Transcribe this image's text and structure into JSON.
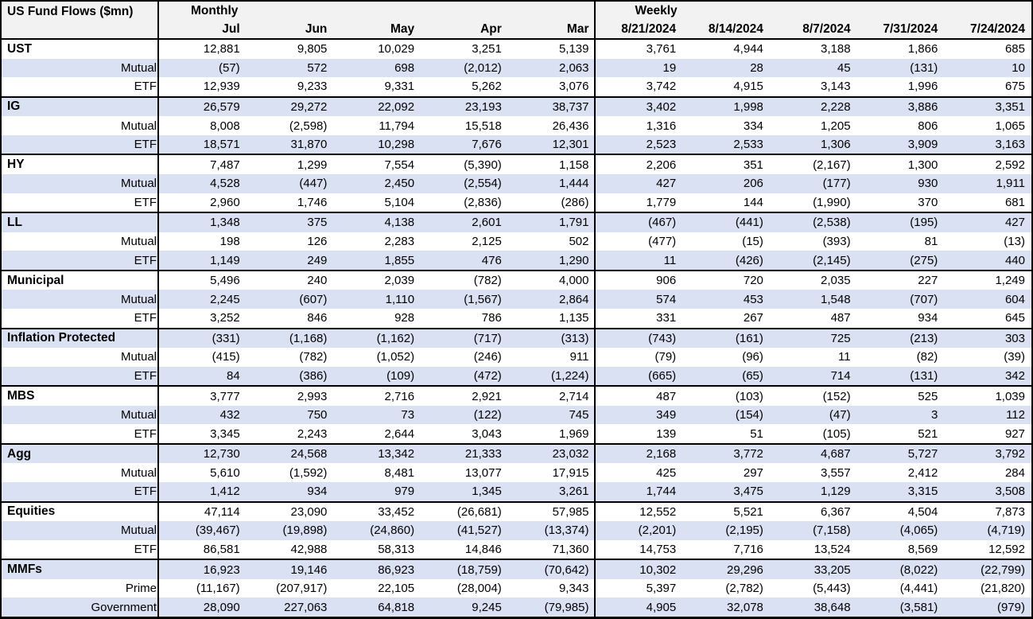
{
  "title": "US Fund Flows ($mn)",
  "colors": {
    "row_alt": "#d9e1f2",
    "header_bg": "#f2f2f2",
    "border": "#000000",
    "text": "#000000"
  },
  "chart_data": {
    "type": "table",
    "title": "US Fund Flows ($mn)",
    "units": "$mn",
    "column_groups": [
      {
        "label": "Monthly",
        "columns": [
          "Jul",
          "Jun",
          "May",
          "Apr",
          "Mar"
        ]
      },
      {
        "label": "Weekly",
        "columns": [
          "8/21/2024",
          "8/14/2024",
          "8/7/2024",
          "7/31/2024",
          "7/24/2024"
        ]
      }
    ],
    "groups": [
      {
        "name": "UST",
        "rows": [
          {
            "label": "UST",
            "bold": true,
            "monthly": [
              "12,881",
              "9,805",
              "10,029",
              "3,251",
              "5,139"
            ],
            "weekly": [
              "3,761",
              "4,944",
              "3,188",
              "1,866",
              "685"
            ]
          },
          {
            "label": "Mutual",
            "monthly": [
              "(57)",
              "572",
              "698",
              "(2,012)",
              "2,063"
            ],
            "weekly": [
              "19",
              "28",
              "45",
              "(131)",
              "10"
            ]
          },
          {
            "label": "ETF",
            "monthly": [
              "12,939",
              "9,233",
              "9,331",
              "5,262",
              "3,076"
            ],
            "weekly": [
              "3,742",
              "4,915",
              "3,143",
              "1,996",
              "675"
            ]
          }
        ]
      },
      {
        "name": "IG",
        "rows": [
          {
            "label": "IG",
            "bold": true,
            "monthly": [
              "26,579",
              "29,272",
              "22,092",
              "23,193",
              "38,737"
            ],
            "weekly": [
              "3,402",
              "1,998",
              "2,228",
              "3,886",
              "3,351"
            ]
          },
          {
            "label": "Mutual",
            "monthly": [
              "8,008",
              "(2,598)",
              "11,794",
              "15,518",
              "26,436"
            ],
            "weekly": [
              "1,316",
              "334",
              "1,205",
              "806",
              "1,065"
            ]
          },
          {
            "label": "ETF",
            "monthly": [
              "18,571",
              "31,870",
              "10,298",
              "7,676",
              "12,301"
            ],
            "weekly": [
              "2,523",
              "2,533",
              "1,306",
              "3,909",
              "3,163"
            ]
          }
        ]
      },
      {
        "name": "HY",
        "rows": [
          {
            "label": "HY",
            "bold": true,
            "monthly": [
              "7,487",
              "1,299",
              "7,554",
              "(5,390)",
              "1,158"
            ],
            "weekly": [
              "2,206",
              "351",
              "(2,167)",
              "1,300",
              "2,592"
            ]
          },
          {
            "label": "Mutual",
            "monthly": [
              "4,528",
              "(447)",
              "2,450",
              "(2,554)",
              "1,444"
            ],
            "weekly": [
              "427",
              "206",
              "(177)",
              "930",
              "1,911"
            ]
          },
          {
            "label": "ETF",
            "monthly": [
              "2,960",
              "1,746",
              "5,104",
              "(2,836)",
              "(286)"
            ],
            "weekly": [
              "1,779",
              "144",
              "(1,990)",
              "370",
              "681"
            ]
          }
        ]
      },
      {
        "name": "LL",
        "rows": [
          {
            "label": "LL",
            "bold": true,
            "monthly": [
              "1,348",
              "375",
              "4,138",
              "2,601",
              "1,791"
            ],
            "weekly": [
              "(467)",
              "(441)",
              "(2,538)",
              "(195)",
              "427"
            ]
          },
          {
            "label": "Mutual",
            "monthly": [
              "198",
              "126",
              "2,283",
              "2,125",
              "502"
            ],
            "weekly": [
              "(477)",
              "(15)",
              "(393)",
              "81",
              "(13)"
            ]
          },
          {
            "label": "ETF",
            "monthly": [
              "1,149",
              "249",
              "1,855",
              "476",
              "1,290"
            ],
            "weekly": [
              "11",
              "(426)",
              "(2,145)",
              "(275)",
              "440"
            ]
          }
        ]
      },
      {
        "name": "Municipal",
        "rows": [
          {
            "label": "Municipal",
            "bold": true,
            "monthly": [
              "5,496",
              "240",
              "2,039",
              "(782)",
              "4,000"
            ],
            "weekly": [
              "906",
              "720",
              "2,035",
              "227",
              "1,249"
            ]
          },
          {
            "label": "Mutual",
            "monthly": [
              "2,245",
              "(607)",
              "1,110",
              "(1,567)",
              "2,864"
            ],
            "weekly": [
              "574",
              "453",
              "1,548",
              "(707)",
              "604"
            ]
          },
          {
            "label": "ETF",
            "monthly": [
              "3,252",
              "846",
              "928",
              "786",
              "1,135"
            ],
            "weekly": [
              "331",
              "267",
              "487",
              "934",
              "645"
            ]
          }
        ]
      },
      {
        "name": "Inflation Protected",
        "rows": [
          {
            "label": "Inflation Protected",
            "bold": true,
            "monthly": [
              "(331)",
              "(1,168)",
              "(1,162)",
              "(717)",
              "(313)"
            ],
            "weekly": [
              "(743)",
              "(161)",
              "725",
              "(213)",
              "303"
            ]
          },
          {
            "label": "Mutual",
            "monthly": [
              "(415)",
              "(782)",
              "(1,052)",
              "(246)",
              "911"
            ],
            "weekly": [
              "(79)",
              "(96)",
              "11",
              "(82)",
              "(39)"
            ]
          },
          {
            "label": "ETF",
            "monthly": [
              "84",
              "(386)",
              "(109)",
              "(472)",
              "(1,224)"
            ],
            "weekly": [
              "(665)",
              "(65)",
              "714",
              "(131)",
              "342"
            ]
          }
        ]
      },
      {
        "name": "MBS",
        "rows": [
          {
            "label": "MBS",
            "bold": true,
            "monthly": [
              "3,777",
              "2,993",
              "2,716",
              "2,921",
              "2,714"
            ],
            "weekly": [
              "487",
              "(103)",
              "(152)",
              "525",
              "1,039"
            ]
          },
          {
            "label": "Mutual",
            "monthly": [
              "432",
              "750",
              "73",
              "(122)",
              "745"
            ],
            "weekly": [
              "349",
              "(154)",
              "(47)",
              "3",
              "112"
            ]
          },
          {
            "label": "ETF",
            "monthly": [
              "3,345",
              "2,243",
              "2,644",
              "3,043",
              "1,969"
            ],
            "weekly": [
              "139",
              "51",
              "(105)",
              "521",
              "927"
            ]
          }
        ]
      },
      {
        "name": "Agg",
        "rows": [
          {
            "label": "Agg",
            "bold": true,
            "monthly": [
              "12,730",
              "24,568",
              "13,342",
              "21,333",
              "23,032"
            ],
            "weekly": [
              "2,168",
              "3,772",
              "4,687",
              "5,727",
              "3,792"
            ]
          },
          {
            "label": "Mutual",
            "monthly": [
              "5,610",
              "(1,592)",
              "8,481",
              "13,077",
              "17,915"
            ],
            "weekly": [
              "425",
              "297",
              "3,557",
              "2,412",
              "284"
            ]
          },
          {
            "label": "ETF",
            "monthly": [
              "1,412",
              "934",
              "979",
              "1,345",
              "3,261"
            ],
            "weekly": [
              "1,744",
              "3,475",
              "1,129",
              "3,315",
              "3,508"
            ]
          }
        ]
      },
      {
        "name": "Equities",
        "rows": [
          {
            "label": "Equities",
            "bold": true,
            "monthly": [
              "47,114",
              "23,090",
              "33,452",
              "(26,681)",
              "57,985"
            ],
            "weekly": [
              "12,552",
              "5,521",
              "6,367",
              "4,504",
              "7,873"
            ]
          },
          {
            "label": "Mutual",
            "monthly": [
              "(39,467)",
              "(19,898)",
              "(24,860)",
              "(41,527)",
              "(13,374)"
            ],
            "weekly": [
              "(2,201)",
              "(2,195)",
              "(7,158)",
              "(4,065)",
              "(4,719)"
            ]
          },
          {
            "label": "ETF",
            "monthly": [
              "86,581",
              "42,988",
              "58,313",
              "14,846",
              "71,360"
            ],
            "weekly": [
              "14,753",
              "7,716",
              "13,524",
              "8,569",
              "12,592"
            ]
          }
        ]
      },
      {
        "name": "MMFs",
        "rows": [
          {
            "label": "MMFs",
            "bold": true,
            "monthly": [
              "16,923",
              "19,146",
              "86,923",
              "(18,759)",
              "(70,642)"
            ],
            "weekly": [
              "10,302",
              "29,296",
              "33,205",
              "(8,022)",
              "(22,799)"
            ]
          },
          {
            "label": "Prime",
            "monthly": [
              "(11,167)",
              "(207,917)",
              "22,105",
              "(28,004)",
              "9,343"
            ],
            "weekly": [
              "5,397",
              "(2,782)",
              "(5,443)",
              "(4,441)",
              "(21,820)"
            ]
          },
          {
            "label": "Government",
            "monthly": [
              "28,090",
              "227,063",
              "64,818",
              "9,245",
              "(79,985)"
            ],
            "weekly": [
              "4,905",
              "32,078",
              "38,648",
              "(3,581)",
              "(979)"
            ]
          }
        ]
      }
    ]
  }
}
